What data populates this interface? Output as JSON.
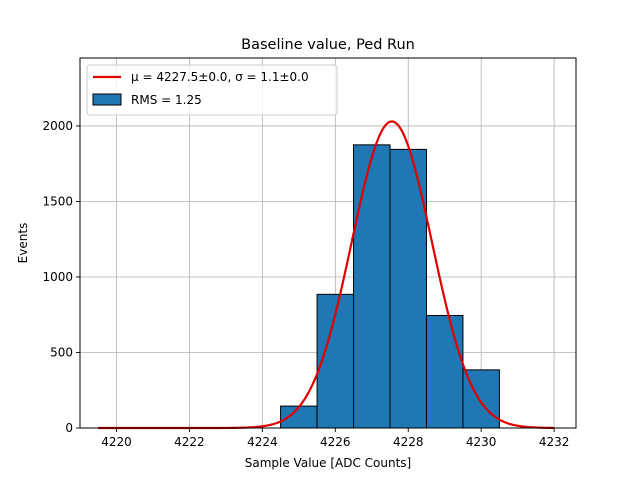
{
  "chart_data": {
    "type": "bar",
    "title": "Baseline value, Ped Run",
    "xlabel": "Sample Value [ADC Counts]",
    "ylabel": "Events",
    "xlim": [
      4219.0,
      4232.6
    ],
    "ylim": [
      0,
      2450
    ],
    "xticks": [
      4220,
      4222,
      4224,
      4226,
      4228,
      4230,
      4232
    ],
    "yticks": [
      0,
      500,
      1000,
      1500,
      2000
    ],
    "grid": true,
    "legend_position": "top-left",
    "histogram": {
      "name": "RMS = 1.25",
      "bin_edges": [
        4219.5,
        4220.5,
        4221.5,
        4222.5,
        4223.5,
        4224.5,
        4225.5,
        4226.5,
        4227.5,
        4228.5,
        4229.5,
        4230.5,
        4231.5
      ],
      "counts": [
        0,
        0,
        0,
        0,
        0,
        145,
        885,
        1875,
        1845,
        745,
        385,
        0
      ],
      "color": "#1f77b4",
      "edgecolor": "#000000"
    },
    "fit": {
      "name_mu": "μ = 4227.5±0.0, ",
      "name_sigma": "σ = 1.1±0.0",
      "function": "gaussian",
      "mean": 4227.55,
      "sigma": 1.1,
      "amplitude": 2030,
      "x_range": [
        4219.5,
        4232.0
      ],
      "color": "#e00000"
    }
  }
}
